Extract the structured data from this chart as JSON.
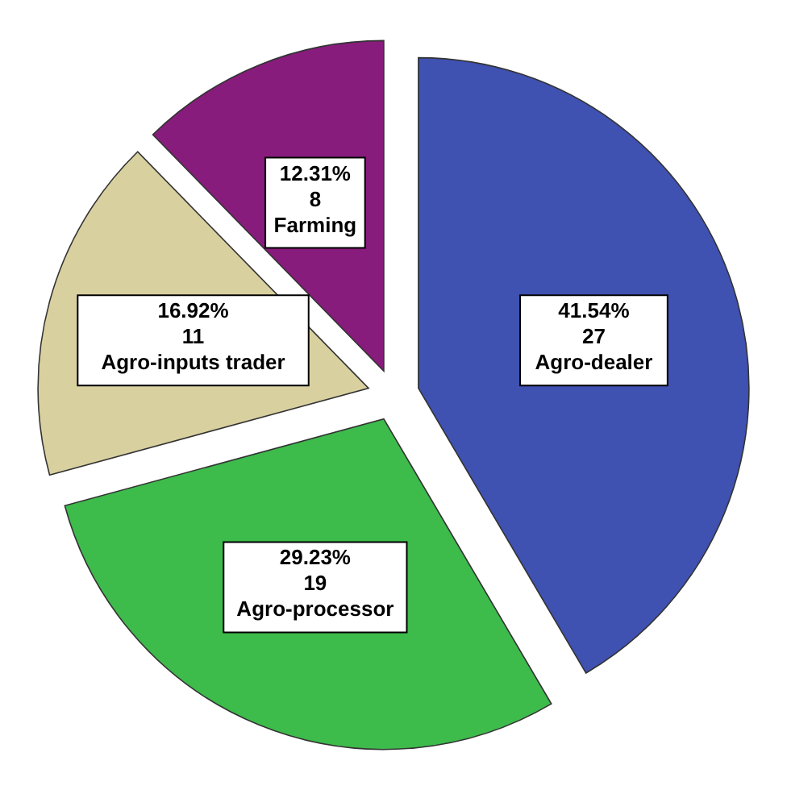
{
  "chart_data": {
    "type": "pie",
    "categories": [
      "Agro-dealer",
      "Agro-processor",
      "Agro-inputs trader",
      "Farming"
    ],
    "values": [
      41.54,
      29.23,
      16.92,
      12.31
    ],
    "value_labels": [
      "41.54%\n27",
      "29.23%\n19",
      "16.92%\n11",
      "12.31%\n8"
    ],
    "colors": [
      "#3f51b1",
      "#3dbb4b",
      "#d9d0a0",
      "#881c7c"
    ],
    "legend": false
  }
}
